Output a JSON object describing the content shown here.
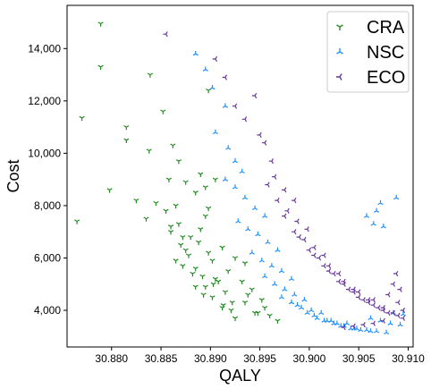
{
  "chart_data": {
    "type": "scatter",
    "xlabel": "QALY",
    "ylabel": "Cost",
    "xlim": [
      30.8755,
      30.9105
    ],
    "ylim": [
      2600,
      15650
    ],
    "x_ticks": [
      {
        "value": 30.88,
        "label": "30.880"
      },
      {
        "value": 30.885,
        "label": "30.885"
      },
      {
        "value": 30.89,
        "label": "30.890"
      },
      {
        "value": 30.895,
        "label": "30.895"
      },
      {
        "value": 30.9,
        "label": "30.900"
      },
      {
        "value": 30.905,
        "label": "30.905"
      },
      {
        "value": 30.91,
        "label": "30.910"
      }
    ],
    "y_ticks": [
      {
        "value": 4000,
        "label": "4,000"
      },
      {
        "value": 6000,
        "label": "6,000"
      },
      {
        "value": 8000,
        "label": "8,000"
      },
      {
        "value": 10000,
        "label": "10,000"
      },
      {
        "value": 12000,
        "label": "12,000"
      },
      {
        "value": 14000,
        "label": "14,000"
      }
    ],
    "grid": false,
    "legend_position": "top-right",
    "series": [
      {
        "name": "CRA",
        "color": "#228b22",
        "marker": "tri_down",
        "x": [
          30.8789,
          30.8765,
          30.877,
          30.8789,
          30.8838,
          30.8868,
          30.8839,
          30.8798,
          30.8845,
          30.8815,
          30.8875,
          30.8825,
          30.8815,
          30.8855,
          30.8865,
          30.889,
          30.8835,
          30.8862,
          30.8858,
          30.8852,
          30.8885,
          30.8868,
          30.8872,
          30.8895,
          30.8905,
          30.886,
          30.887,
          30.8875,
          30.888,
          30.889,
          30.8895,
          30.8865,
          30.886,
          30.8878,
          30.8888,
          30.8898,
          30.8885,
          30.8892,
          30.8872,
          30.8902,
          30.8912,
          30.8918,
          30.8908,
          30.8895,
          30.8925,
          30.8935,
          30.8915,
          30.8882,
          30.8902,
          30.8922,
          30.8932,
          30.8942,
          30.8952,
          30.8912,
          30.8898,
          30.8905,
          30.8885,
          30.8893,
          30.8913,
          30.8903,
          30.8921,
          30.8945,
          30.896,
          30.8935,
          30.8955,
          30.8925,
          30.8938,
          30.8948,
          30.8968,
          30.8898
        ],
        "y": [
          14950,
          7400,
          11350,
          13300,
          10100,
          9700,
          13000,
          8600,
          8100,
          10500,
          8900,
          8200,
          11000,
          7800,
          8000,
          9200,
          7500,
          10300,
          9000,
          11600,
          8500,
          7300,
          6800,
          8700,
          9000,
          7000,
          6500,
          6300,
          6800,
          7100,
          7600,
          5900,
          7200,
          6100,
          6600,
          7900,
          5600,
          5300,
          5700,
          5900,
          6400,
          5500,
          5100,
          4900,
          6000,
          5800,
          4700,
          5400,
          4500,
          4300,
          5100,
          4800,
          4400,
          4100,
          6200,
          5200,
          4900,
          4600,
          4200,
          5000,
          4000,
          3900,
          3800,
          4300,
          4100,
          3700,
          4600,
          3900,
          3600,
          12400
        ]
      },
      {
        "name": "NSC",
        "color": "#1e90ff",
        "marker": "tri_up",
        "x": [
          30.8885,
          30.8895,
          30.8902,
          30.8915,
          30.8905,
          30.8918,
          30.8925,
          30.8932,
          30.8915,
          30.8925,
          30.8935,
          30.8945,
          30.8955,
          30.8928,
          30.8938,
          30.8948,
          30.8958,
          30.8968,
          30.8942,
          30.8952,
          30.8962,
          30.8972,
          30.8982,
          30.8955,
          30.8965,
          30.8975,
          30.8985,
          30.8995,
          30.8972,
          30.8982,
          30.8992,
          30.9002,
          30.9012,
          30.8988,
          30.8998,
          30.9008,
          30.9018,
          30.9028,
          30.9005,
          30.9015,
          30.9025,
          30.9035,
          30.9045,
          30.9022,
          30.9032,
          30.9042,
          30.9052,
          30.9062,
          30.9038,
          30.9048,
          30.9058,
          30.9068,
          30.9078,
          30.9062,
          30.9072,
          30.9082,
          30.9092,
          30.9085,
          30.9095,
          30.9065,
          30.9075,
          30.9058,
          30.9068,
          30.9072,
          30.9088
        ],
        "y": [
          13800,
          13200,
          12500,
          11800,
          10800,
          10200,
          9700,
          9300,
          9000,
          8700,
          8300,
          7900,
          7600,
          7400,
          7100,
          6900,
          6600,
          6300,
          6200,
          5900,
          5700,
          5500,
          5200,
          5300,
          5000,
          4800,
          4600,
          4400,
          4500,
          4300,
          4100,
          4000,
          3900,
          4200,
          3900,
          3700,
          3600,
          3500,
          3800,
          3600,
          3500,
          3400,
          3300,
          3600,
          3400,
          3300,
          3250,
          3200,
          3500,
          3300,
          3250,
          3200,
          3150,
          3700,
          3600,
          3500,
          3450,
          3900,
          3850,
          7300,
          7200,
          7600,
          7800,
          8100,
          8300
        ]
      },
      {
        "name": "ECO",
        "color": "#663399",
        "marker": "tri_left",
        "x": [
          30.8855,
          30.8905,
          30.8915,
          30.8945,
          30.8935,
          30.8955,
          30.8925,
          30.895,
          30.8962,
          30.8965,
          30.8975,
          30.8985,
          30.8958,
          30.8968,
          30.8978,
          30.8988,
          30.8998,
          30.8975,
          30.8985,
          30.8995,
          30.9005,
          30.9015,
          30.899,
          30.9,
          30.901,
          30.902,
          30.903,
          30.9005,
          30.9015,
          30.9025,
          30.9035,
          30.9045,
          30.902,
          30.903,
          30.904,
          30.905,
          30.906,
          30.9035,
          30.9045,
          30.9055,
          30.9065,
          30.9075,
          30.905,
          30.906,
          30.907,
          30.908,
          30.909,
          30.9065,
          30.9075,
          30.9085,
          30.9095,
          30.908,
          30.909,
          30.9095,
          30.9075,
          30.9065,
          30.9055,
          30.9045,
          30.9035,
          30.9085,
          30.9092,
          30.9088
        ],
        "y": [
          14550,
          13600,
          12900,
          12200,
          11300,
          10400,
          11800,
          10700,
          9700,
          9100,
          8600,
          8200,
          8800,
          8200,
          7800,
          7400,
          7100,
          7600,
          7000,
          6700,
          6400,
          6100,
          6800,
          6300,
          6000,
          5700,
          5400,
          6100,
          5700,
          5400,
          5100,
          4800,
          5500,
          5100,
          4800,
          4500,
          4300,
          5000,
          4700,
          4400,
          4200,
          4000,
          4700,
          4400,
          4100,
          3900,
          3800,
          4400,
          4100,
          3900,
          3700,
          4600,
          4300,
          4000,
          3600,
          3500,
          3450,
          3400,
          3350,
          5000,
          4800,
          5400
        ]
      }
    ]
  }
}
